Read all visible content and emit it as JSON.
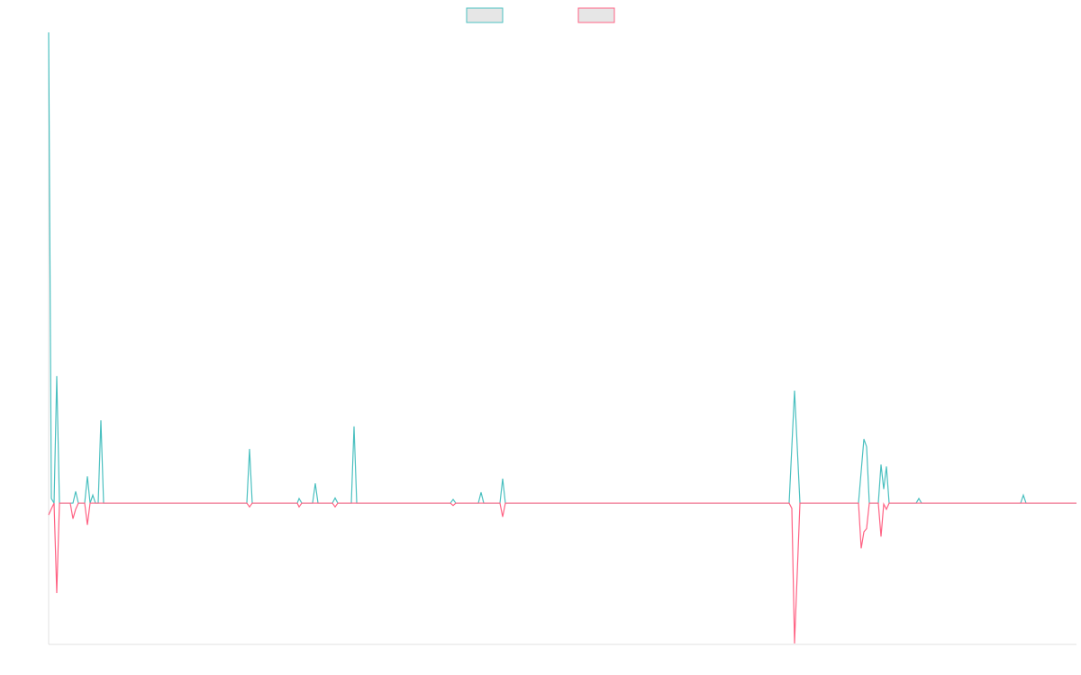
{
  "chart_data": {
    "type": "line",
    "x": [
      0,
      3,
      6,
      9,
      12,
      24,
      27,
      30,
      33,
      40,
      43,
      46,
      49,
      52,
      55,
      58,
      61,
      220,
      223,
      226,
      276,
      278,
      281,
      293,
      296,
      299,
      315,
      318,
      321,
      336,
      339,
      342,
      446,
      449,
      452,
      477,
      480,
      483,
      501,
      504,
      507,
      822,
      825,
      828,
      834,
      899,
      902,
      905,
      908,
      911,
      921,
      924,
      927,
      930,
      933,
      963,
      966,
      969,
      1079,
      1082,
      1085,
      1141
    ],
    "xlim": [
      0,
      1141
    ],
    "ylim": [
      -30,
      100
    ],
    "legend": "top",
    "series": [
      {
        "color": "#4bc0c0",
        "values": [
          100,
          1,
          0,
          27,
          0,
          0,
          0,
          2.5,
          0,
          0,
          5.7,
          0,
          1.7,
          0,
          0,
          17.6,
          0,
          0,
          11.5,
          0,
          0,
          1,
          0,
          0,
          4.2,
          0,
          0,
          1.1,
          0,
          0,
          16.3,
          0,
          0,
          0.8,
          0,
          0,
          2.3,
          0,
          0,
          5.2,
          0,
          0,
          12,
          23.9,
          0,
          0,
          6.8,
          13.6,
          12,
          0,
          0,
          8.2,
          3,
          7.8,
          0,
          0,
          1,
          0,
          0,
          1.7,
          0,
          0
        ]
      },
      {
        "color": "#ff6384",
        "values": [
          -2.5,
          -1.2,
          0,
          -19.1,
          0,
          0,
          -3.3,
          -1.3,
          0,
          0,
          -4.6,
          0,
          0,
          0,
          0,
          0,
          0,
          0,
          -0.8,
          0,
          0,
          -0.8,
          0,
          0,
          0,
          0,
          0,
          -0.8,
          0,
          0,
          0,
          0,
          0,
          -0.5,
          0,
          0,
          0,
          0,
          0,
          -2.9,
          0,
          0,
          -1.1,
          -29.8,
          0,
          0,
          -9.6,
          -6.1,
          -5.4,
          0,
          0,
          -7.1,
          -0.2,
          -1.3,
          0,
          0,
          0,
          0,
          0,
          0,
          0,
          0
        ]
      }
    ]
  }
}
